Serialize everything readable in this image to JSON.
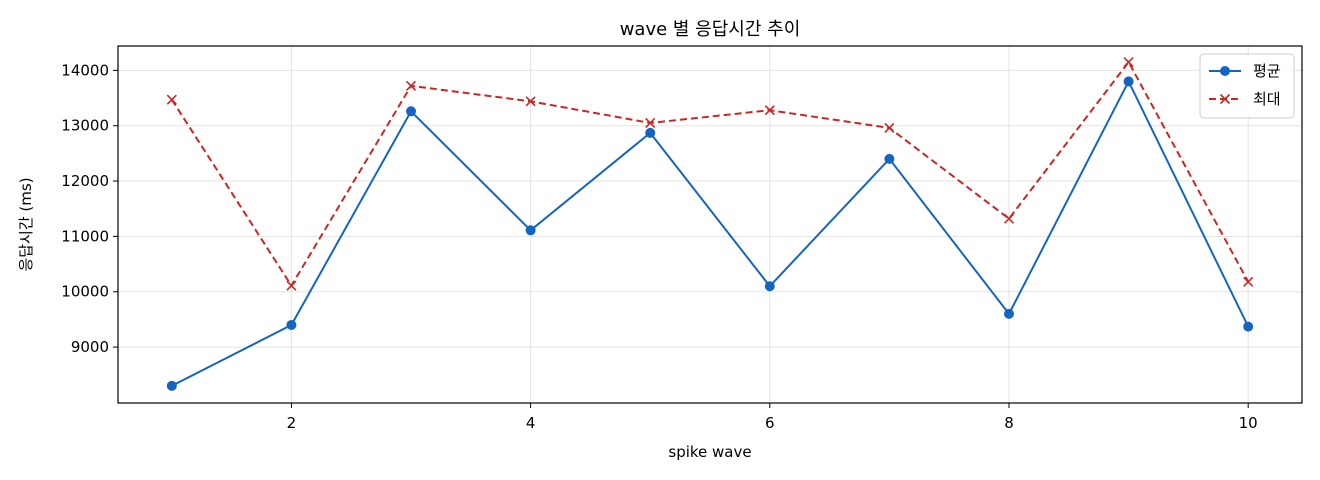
{
  "chart_data": {
    "type": "line",
    "title": "wave 별 응답시간 추이",
    "xlabel": "spike wave",
    "ylabel": "응답시간 (ms)",
    "x": [
      1,
      2,
      3,
      4,
      5,
      6,
      7,
      8,
      9,
      10
    ],
    "xlim": [
      0.55,
      10.45
    ],
    "ylim": [
      7990,
      14440
    ],
    "xticks": [
      2,
      4,
      6,
      8,
      10
    ],
    "yticks": [
      9000,
      10000,
      11000,
      12000,
      13000,
      14000
    ],
    "grid": true,
    "legend_position": "top-right",
    "series": [
      {
        "name": "평균",
        "color": "#1565c0",
        "marker": "circle",
        "line_style": "solid",
        "values": [
          8300,
          9400,
          13260,
          11110,
          12870,
          10100,
          12400,
          9600,
          13800,
          9370
        ]
      },
      {
        "name": "최대",
        "color": "#c62828",
        "marker": "x",
        "line_style": "dashed",
        "values": [
          13470,
          10110,
          13720,
          13440,
          13050,
          13280,
          12960,
          11320,
          14150,
          10180
        ]
      }
    ]
  }
}
